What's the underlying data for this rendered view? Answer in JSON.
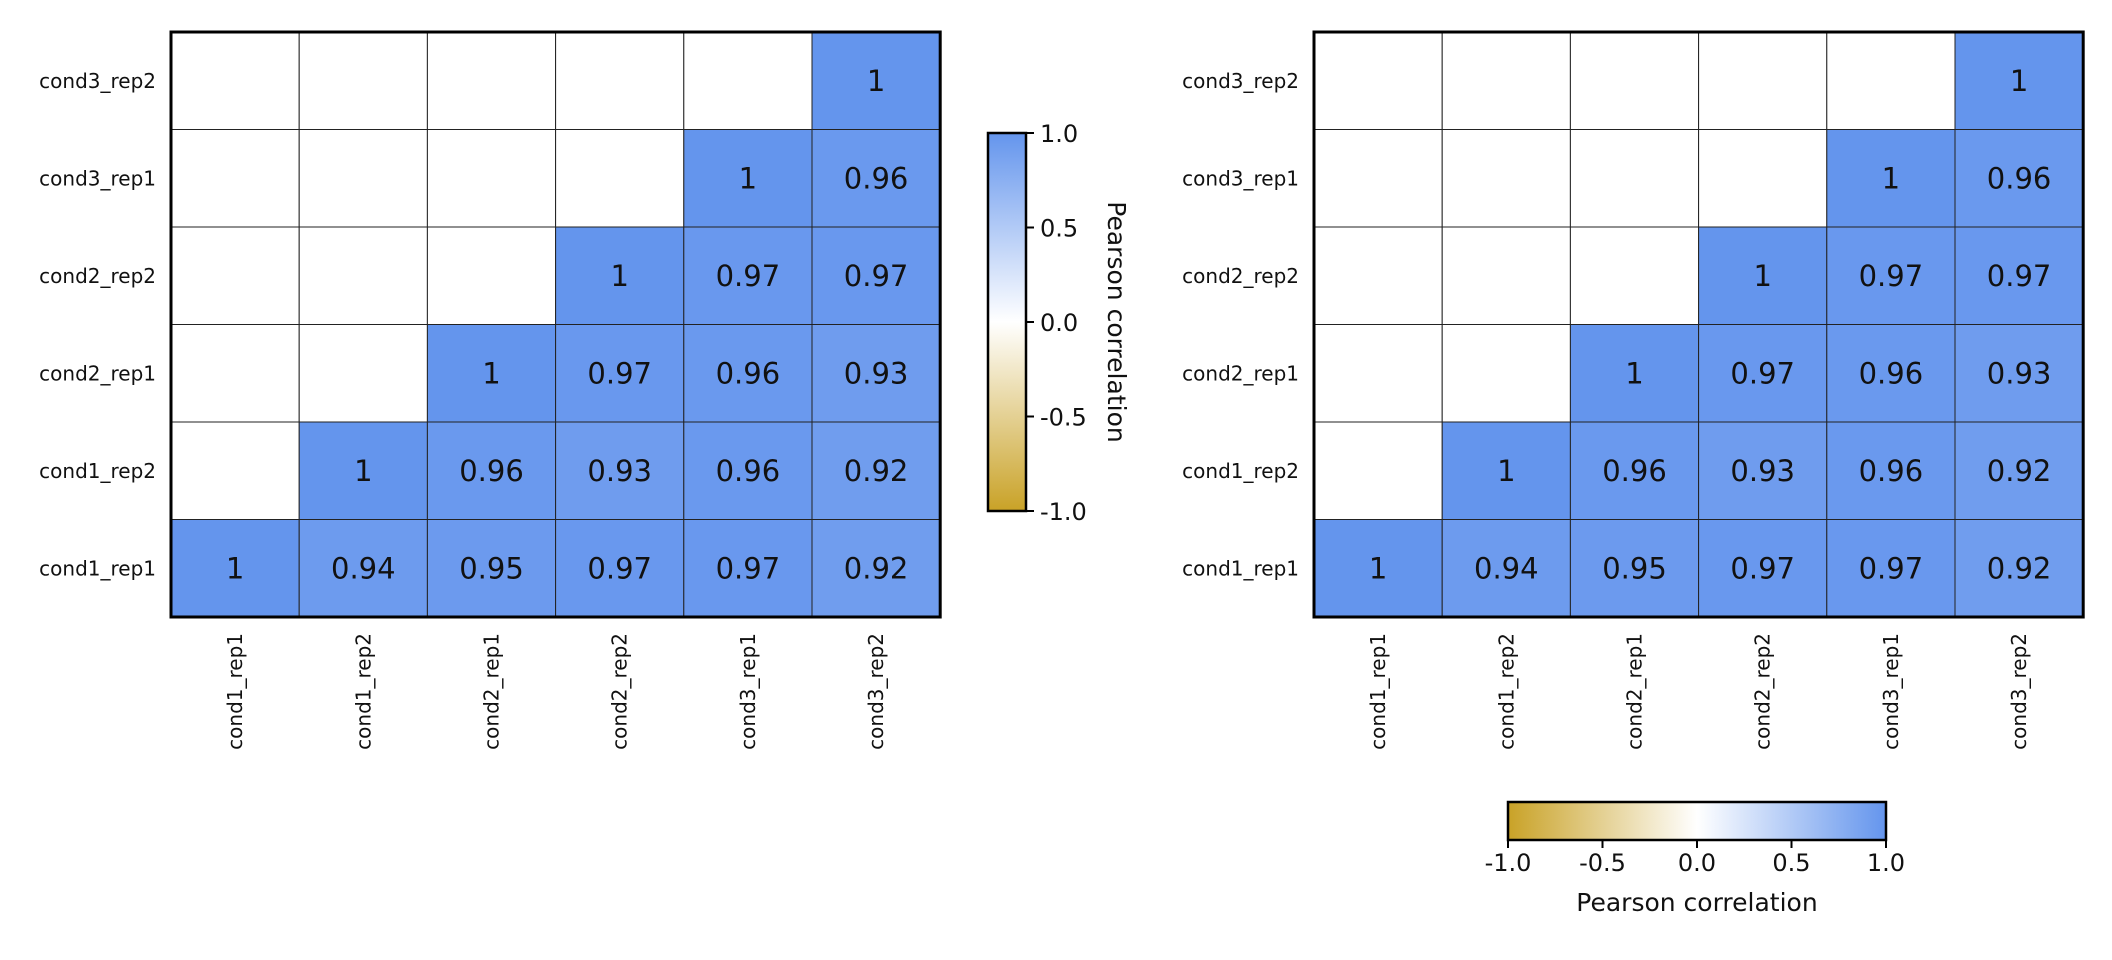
{
  "colors": {
    "low": "#c9a227",
    "mid": "#ffffff",
    "high": "#6495ed",
    "grid": "#222222",
    "frame": "#000000"
  },
  "colorbar": {
    "label": "Pearson correlation",
    "ticks": [
      "1.0",
      "0.5",
      "0.0",
      "-0.5",
      "-1.0"
    ],
    "range": [
      -1.0,
      1.0
    ]
  },
  "chart_data": [
    {
      "type": "heatmap",
      "title": "",
      "x_labels": [
        "cond1_rep1",
        "cond1_rep2",
        "cond2_rep1",
        "cond2_rep2",
        "cond3_rep1",
        "cond3_rep2"
      ],
      "y_labels": [
        "cond1_rep1",
        "cond1_rep2",
        "cond2_rep1",
        "cond2_rep2",
        "cond3_rep1",
        "cond3_rep2"
      ],
      "values": [
        [
          1,
          0.94,
          0.95,
          0.97,
          0.97,
          0.92
        ],
        [
          null,
          1,
          0.96,
          0.93,
          0.96,
          0.92
        ],
        [
          null,
          null,
          1,
          0.97,
          0.96,
          0.93
        ],
        [
          null,
          null,
          null,
          1,
          0.97,
          0.97
        ],
        [
          null,
          null,
          null,
          null,
          1,
          0.96
        ],
        [
          null,
          null,
          null,
          null,
          null,
          1
        ]
      ],
      "value_labels": [
        [
          "1",
          "0.94",
          "0.95",
          "0.97",
          "0.97",
          "0.92"
        ],
        [
          "",
          "1",
          "0.96",
          "0.93",
          "0.96",
          "0.92"
        ],
        [
          "",
          "",
          "1",
          "0.97",
          "0.96",
          "0.93"
        ],
        [
          "",
          "",
          "",
          "1",
          "0.97",
          "0.97"
        ],
        [
          "",
          "",
          "",
          "",
          "1",
          "0.96"
        ],
        [
          "",
          "",
          "",
          "",
          "",
          "1"
        ]
      ],
      "colorbar_orientation": "vertical",
      "colorbar_position": "right"
    },
    {
      "type": "heatmap",
      "title": "",
      "x_labels": [
        "cond1_rep1",
        "cond1_rep2",
        "cond2_rep1",
        "cond2_rep2",
        "cond3_rep1",
        "cond3_rep2"
      ],
      "y_labels": [
        "cond1_rep1",
        "cond1_rep2",
        "cond2_rep1",
        "cond2_rep2",
        "cond3_rep1",
        "cond3_rep2"
      ],
      "values": [
        [
          1,
          0.94,
          0.95,
          0.97,
          0.97,
          0.92
        ],
        [
          null,
          1,
          0.96,
          0.93,
          0.96,
          0.92
        ],
        [
          null,
          null,
          1,
          0.97,
          0.96,
          0.93
        ],
        [
          null,
          null,
          null,
          1,
          0.97,
          0.97
        ],
        [
          null,
          null,
          null,
          null,
          1,
          0.96
        ],
        [
          null,
          null,
          null,
          null,
          null,
          1
        ]
      ],
      "value_labels": [
        [
          "1",
          "0.94",
          "0.95",
          "0.97",
          "0.97",
          "0.92"
        ],
        [
          "",
          "1",
          "0.96",
          "0.93",
          "0.96",
          "0.92"
        ],
        [
          "",
          "",
          "1",
          "0.97",
          "0.96",
          "0.93"
        ],
        [
          "",
          "",
          "",
          "1",
          "0.97",
          "0.97"
        ],
        [
          "",
          "",
          "",
          "",
          "1",
          "0.96"
        ],
        [
          "",
          "",
          "",
          "",
          "",
          "1"
        ]
      ],
      "colorbar_orientation": "horizontal",
      "colorbar_position": "bottom"
    }
  ]
}
